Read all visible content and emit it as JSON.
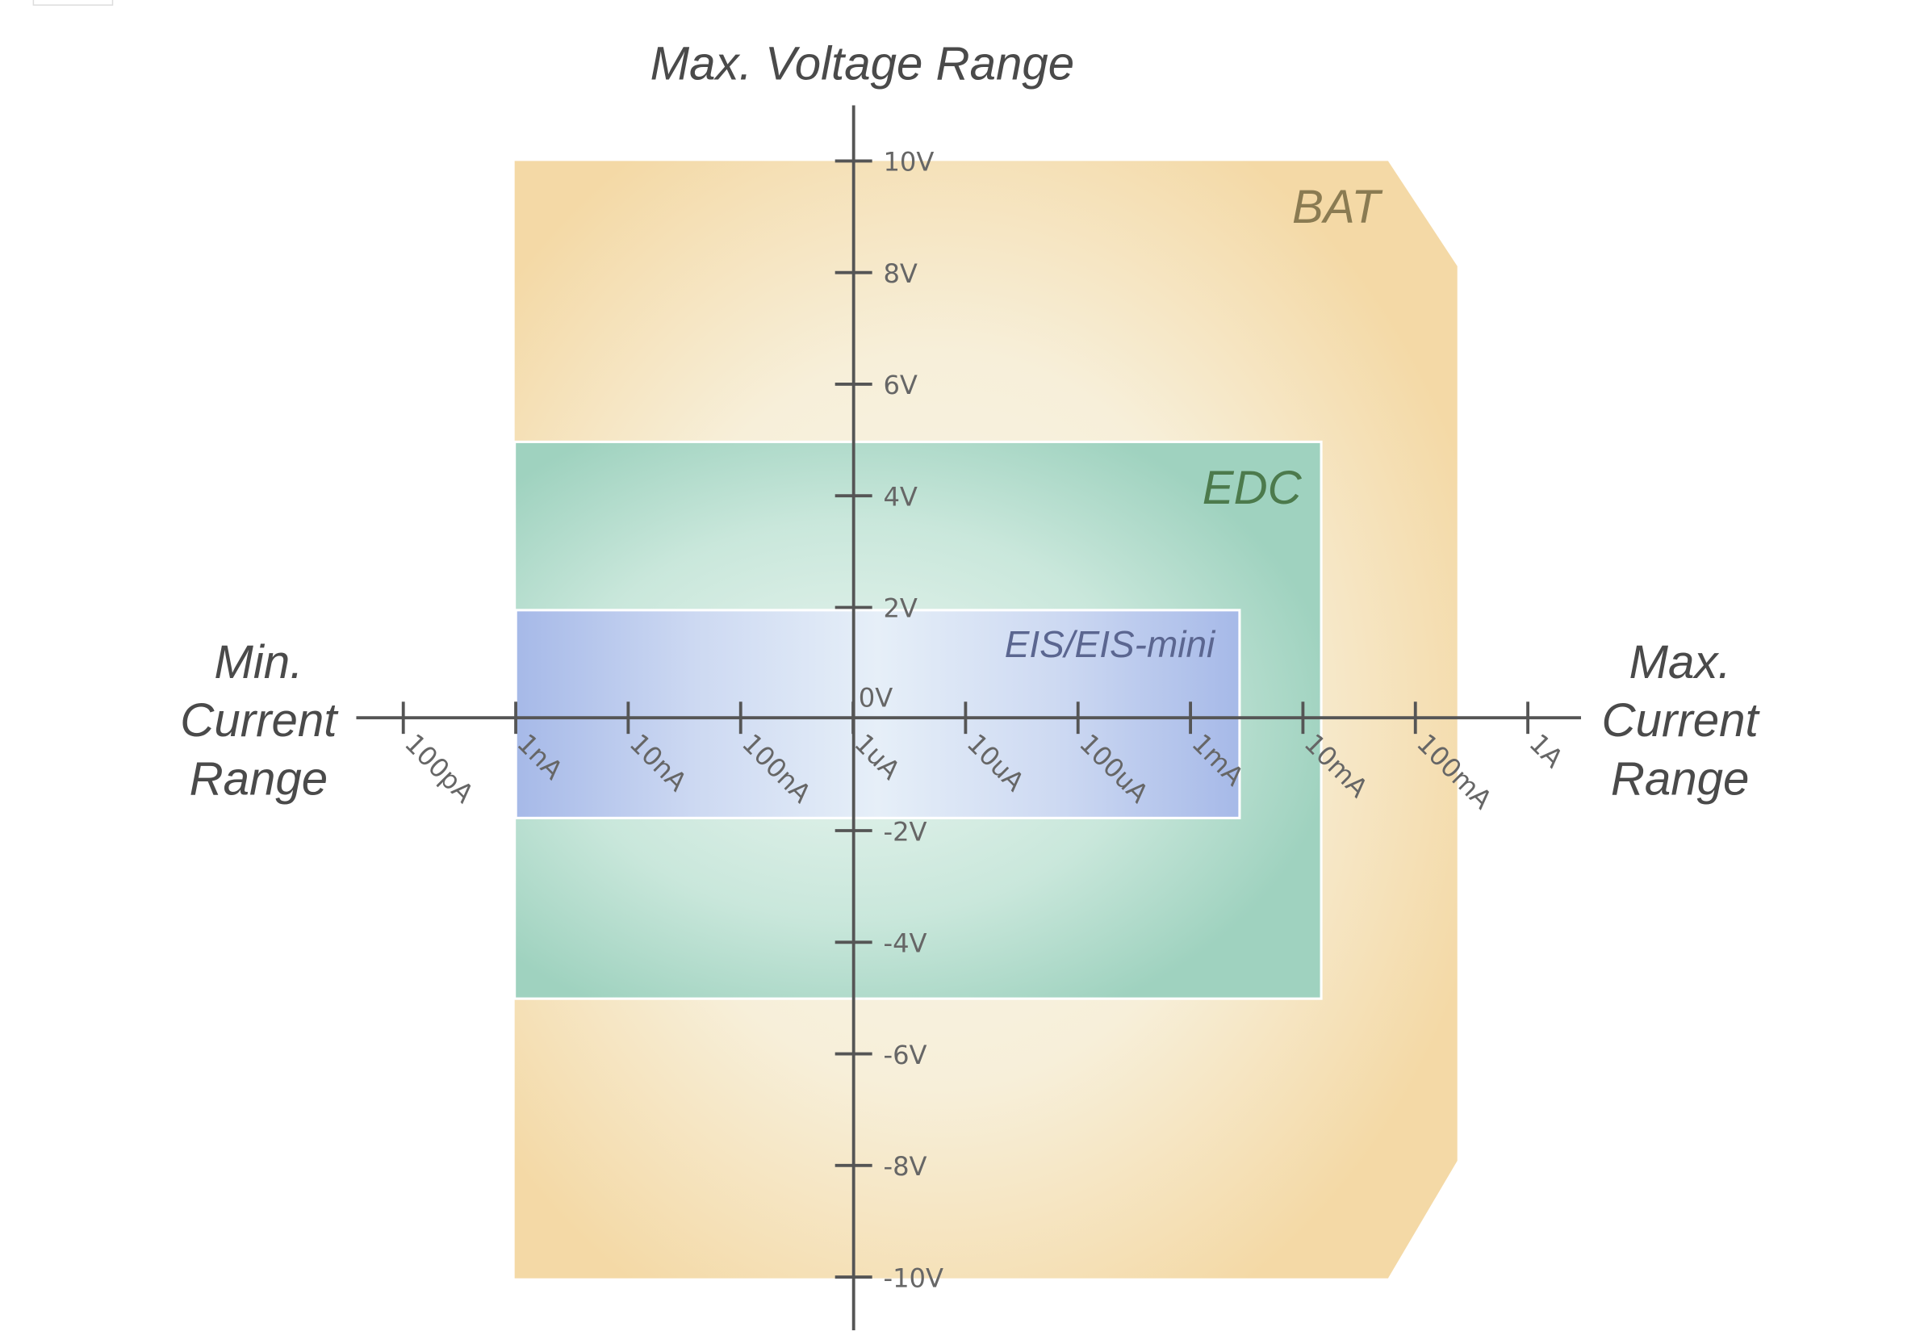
{
  "axis_titles": {
    "top": "Max. Voltage Range",
    "left": [
      "Min.",
      "Current",
      "Range"
    ],
    "right": [
      "Max.",
      "Current",
      "Range"
    ]
  },
  "x_tick_labels": [
    "100pA",
    "1nA",
    "10nA",
    "100nA",
    "1uA",
    "10uA",
    "100uA",
    "1mA",
    "10mA",
    "100mA",
    "1A"
  ],
  "y_tick_labels": [
    "10V",
    "8V",
    "6V",
    "4V",
    "2V",
    "0V",
    "-2V",
    "-4V",
    "-6V",
    "-8V",
    "-10V"
  ],
  "regions": [
    "BAT",
    "EDC",
    "EIS/EIS-mini"
  ]
}
